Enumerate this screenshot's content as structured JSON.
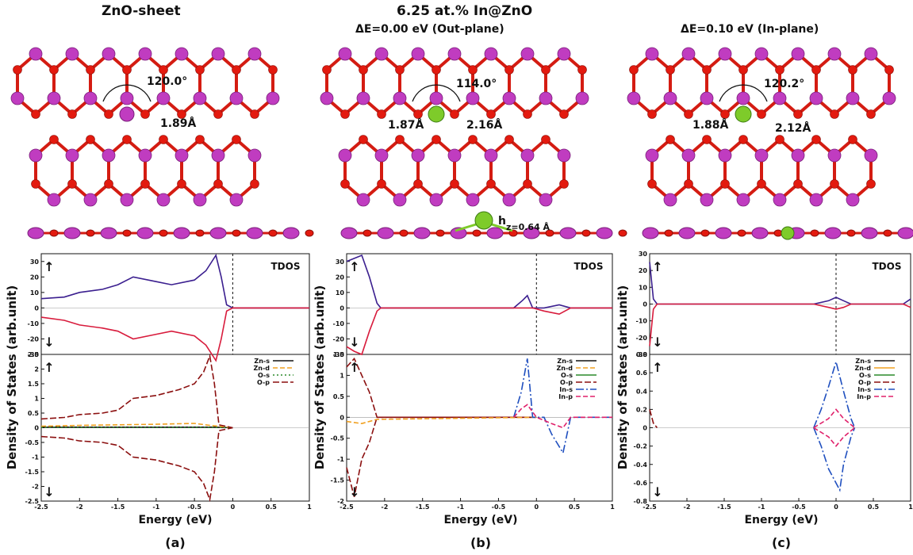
{
  "headers": {
    "col_a": "ZnO-sheet",
    "main": "6.25 at.% In@ZnO",
    "col_b": "ΔE=0.00 eV (Out-plane)",
    "col_c": "ΔE=0.10 eV (In-plane)"
  },
  "structures": {
    "a": {
      "angle": "120.0°",
      "bond": "1.89Å"
    },
    "b": {
      "angle": "114.0°",
      "bond_zno": "1.87Å",
      "bond_in": "2.16Å",
      "height": "h",
      "height_sub": "z=0.64 Å"
    },
    "c": {
      "angle": "120.2°",
      "bond_zno": "1.88Å",
      "bond_in": "2.12Å"
    }
  },
  "colors": {
    "zn": "#c03cc0",
    "o": "#e31a0f",
    "in": "#7ecb2a",
    "bond_red": "#d41c12",
    "bond_mag": "#c23cb6"
  },
  "common": {
    "ylabel": "Density of States (arb.unit)",
    "xlabel": "Energy (eV)",
    "tdos": "TDOS",
    "arrow_up": "↑",
    "arrow_down": "↓",
    "x_ticks": [
      "-2.5",
      "-2",
      "-1.5",
      "-1",
      "-0.5",
      "0",
      "0.5",
      "1"
    ]
  },
  "chart_data": [
    {
      "type": "line",
      "panel_label": "(a)",
      "xlim": [
        -2.5,
        1
      ],
      "tdos": {
        "ylim": [
          -30,
          35
        ],
        "ticks": [
          "30",
          "20",
          "10",
          "0",
          "-10",
          "-20",
          "-30"
        ],
        "series": [
          {
            "color": "#3b1f8f",
            "x": [
              -2.5,
              -2.2,
              -2,
              -1.7,
              -1.5,
              -1.3,
              -1,
              -0.8,
              -0.5,
              -0.35,
              -0.22,
              -0.15,
              -0.08,
              0,
              1
            ],
            "y": [
              6,
              7,
              10,
              12,
              15,
              20,
              17,
              15,
              18,
              24,
              34,
              20,
              2,
              0,
              0
            ]
          },
          {
            "color": "#d81b3c",
            "x": [
              -2.5,
              -2.2,
              -2,
              -1.7,
              -1.5,
              -1.3,
              -1,
              -0.8,
              -0.5,
              -0.35,
              -0.22,
              -0.15,
              -0.08,
              0,
              1
            ],
            "y": [
              -6,
              -8,
              -11,
              -13,
              -15,
              -20,
              -17,
              -15,
              -18,
              -24,
              -34,
              -20,
              -2,
              0,
              0
            ]
          }
        ]
      },
      "pdos": {
        "ylim": [
          -2.5,
          2.5
        ],
        "ticks": [
          "2.5",
          "2",
          "1.5",
          "1",
          "0.5",
          "0",
          "-0.5",
          "-1",
          "-1.5",
          "-2",
          "-2.5"
        ],
        "legend": [
          "Zn-s",
          "Zn-d",
          "O-s",
          "O-p"
        ],
        "series": [
          {
            "name": "Zn-s",
            "color": "#111111",
            "dash": "",
            "x": [
              -2.5,
              -0.25,
              0
            ],
            "y": [
              0.02,
              0.02,
              0
            ]
          },
          {
            "name": "Zn-d",
            "color": "#f0a020",
            "dash": "6,3",
            "x": [
              -2.5,
              -2,
              -1.5,
              -1,
              -0.5,
              -0.3,
              0
            ],
            "y": [
              0.05,
              0.08,
              0.1,
              0.12,
              0.15,
              0.08,
              0
            ]
          },
          {
            "name": "O-s",
            "color": "#2a8a2a",
            "dash": "2,3",
            "x": [
              -2.5,
              -0.25,
              0
            ],
            "y": [
              0.01,
              0.01,
              0
            ]
          },
          {
            "name": "O-p",
            "color": "#8b0f0f",
            "dash": "8,3",
            "x": [
              -2.5,
              -2.2,
              -2,
              -1.7,
              -1.5,
              -1.3,
              -1,
              -0.7,
              -0.5,
              -0.38,
              -0.3,
              -0.24,
              -0.18,
              0
            ],
            "y": [
              0.3,
              0.35,
              0.45,
              0.5,
              0.6,
              1.0,
              1.1,
              1.3,
              1.5,
              1.9,
              2.45,
              1.5,
              0.1,
              0
            ]
          },
          {
            "name": "O-p",
            "color": "#8b0f0f",
            "dash": "8,3",
            "x": [
              -2.5,
              -2.2,
              -2,
              -1.7,
              -1.5,
              -1.3,
              -1,
              -0.7,
              -0.5,
              -0.38,
              -0.3,
              -0.24,
              -0.18,
              0
            ],
            "y": [
              -0.3,
              -0.35,
              -0.45,
              -0.5,
              -0.6,
              -1.0,
              -1.1,
              -1.3,
              -1.5,
              -1.9,
              -2.45,
              -1.5,
              -0.1,
              0
            ]
          }
        ]
      }
    },
    {
      "type": "line",
      "panel_label": "(b)",
      "xlim": [
        -2.5,
        1
      ],
      "tdos": {
        "ylim": [
          -30,
          35
        ],
        "ticks": [
          "30",
          "20",
          "10",
          "0",
          "-10",
          "-20",
          "-30"
        ],
        "series": [
          {
            "color": "#3b1f8f",
            "x": [
              -2.5,
              -2.4,
              -2.3,
              -2.2,
              -2.1,
              -2.05,
              -0.3,
              -0.18,
              -0.12,
              -0.05,
              0.1,
              0.3,
              0.45,
              1
            ],
            "y": [
              30,
              32,
              34,
              20,
              3,
              0,
              0,
              5,
              8,
              0,
              0,
              2,
              0,
              0
            ]
          },
          {
            "color": "#d81b3c",
            "x": [
              -2.5,
              -2.4,
              -2.3,
              -2.2,
              -2.1,
              -2.05,
              -0.3,
              -0.18,
              -0.12,
              -0.05,
              0.1,
              0.3,
              0.45,
              1
            ],
            "y": [
              -25,
              -28,
              -30,
              -15,
              -2,
              0,
              0,
              0,
              0,
              0,
              -2,
              -4,
              0,
              0
            ]
          }
        ]
      },
      "pdos": {
        "ylim": [
          -2,
          1.5
        ],
        "ticks": [
          "1.5",
          "1",
          "0.5",
          "0",
          "-0.5",
          "-1",
          "-1.5",
          "-2"
        ],
        "legend": [
          "Zn-s",
          "Zn-d",
          "O-s",
          "O-p",
          "In-s",
          "In-p"
        ],
        "series": [
          {
            "name": "O-p",
            "color": "#8b0f0f",
            "dash": "8,3",
            "x": [
              -2.5,
              -2.4,
              -2.3,
              -2.2,
              -2.1,
              0
            ],
            "y": [
              1.2,
              1.4,
              1.0,
              0.6,
              0,
              0
            ]
          },
          {
            "name": "O-p",
            "color": "#8b0f0f",
            "dash": "8,3",
            "x": [
              -2.5,
              -2.4,
              -2.3,
              -2.2,
              -2.1,
              0
            ],
            "y": [
              -1.2,
              -1.9,
              -1.0,
              -0.6,
              0,
              0
            ]
          },
          {
            "name": "Zn-d",
            "color": "#f0a020",
            "dash": "6,3",
            "x": [
              -2.5,
              -2.3,
              -2.1,
              0
            ],
            "y": [
              -0.1,
              -0.15,
              -0.05,
              0
            ]
          },
          {
            "name": "In-s",
            "color": "#1f4fbf",
            "dash": "10,3,2,3",
            "x": [
              -0.3,
              -0.2,
              -0.12,
              -0.05,
              0.1,
              0.2,
              0.35,
              0.45,
              1
            ],
            "y": [
              0,
              0.6,
              1.4,
              0,
              0,
              -0.4,
              -0.85,
              0,
              0
            ]
          },
          {
            "name": "In-p",
            "color": "#e0206a",
            "dash": "6,3",
            "x": [
              -0.3,
              -0.2,
              -0.12,
              0,
              0.2,
              0.35,
              0.45,
              1
            ],
            "y": [
              0,
              0.2,
              0.3,
              0,
              -0.15,
              -0.25,
              0,
              0
            ]
          }
        ]
      }
    },
    {
      "type": "line",
      "panel_label": "(c)",
      "xlim": [
        -2.5,
        1
      ],
      "tdos": {
        "ylim": [
          -30,
          30
        ],
        "ticks": [
          "30",
          "20",
          "10",
          "0",
          "-10",
          "-20",
          "-30"
        ],
        "series": [
          {
            "color": "#3b1f8f",
            "x": [
              -2.5,
              -2.45,
              -2.4,
              -0.3,
              -0.1,
              0,
              0.1,
              0.2,
              0.9,
              1
            ],
            "y": [
              25,
              3,
              0,
              0,
              2,
              4,
              2,
              0,
              0,
              3
            ]
          },
          {
            "color": "#d81b3c",
            "x": [
              -2.5,
              -2.45,
              -2.4,
              -0.3,
              -0.1,
              0,
              0.1,
              0.2,
              0.9,
              1
            ],
            "y": [
              -25,
              -3,
              0,
              0,
              -2,
              -3,
              -2,
              0,
              0,
              -2
            ]
          }
        ]
      },
      "pdos": {
        "ylim": [
          -0.8,
          0.8
        ],
        "ticks": [
          "0.8",
          "0.6",
          "0.4",
          "0.2",
          "0",
          "-0.2",
          "-0.4",
          "-0.6",
          "-0.8"
        ],
        "legend": [
          "Zn-s",
          "Zn-d",
          "O-s",
          "O-p",
          "In-s",
          "In-p"
        ],
        "series": [
          {
            "name": "O-p",
            "color": "#8b0f0f",
            "dash": "8,3",
            "x": [
              -2.5,
              -2.45,
              -2.4
            ],
            "y": [
              0.2,
              0.05,
              0
            ]
          },
          {
            "name": "In-s",
            "color": "#1f4fbf",
            "dash": "10,3,2,3",
            "x": [
              -0.3,
              -0.2,
              -0.1,
              0,
              0.1,
              0.2,
              0.25
            ],
            "y": [
              0,
              0.2,
              0.45,
              0.72,
              0.4,
              0.1,
              0
            ]
          },
          {
            "name": "In-s",
            "color": "#1f4fbf",
            "dash": "10,3,2,3",
            "x": [
              -0.3,
              -0.2,
              -0.1,
              0.05,
              0.1,
              0.2,
              0.25
            ],
            "y": [
              0,
              -0.2,
              -0.45,
              -0.68,
              -0.4,
              -0.1,
              0
            ]
          },
          {
            "name": "In-p",
            "color": "#e0206a",
            "dash": "6,3",
            "x": [
              -0.3,
              -0.1,
              0,
              0.1,
              0.25
            ],
            "y": [
              0,
              0.1,
              0.2,
              0.1,
              0
            ]
          },
          {
            "name": "In-p",
            "color": "#e0206a",
            "dash": "6,3",
            "x": [
              -0.3,
              -0.1,
              0,
              0.1,
              0.25
            ],
            "y": [
              0,
              -0.1,
              -0.2,
              -0.1,
              0
            ]
          }
        ]
      }
    }
  ]
}
